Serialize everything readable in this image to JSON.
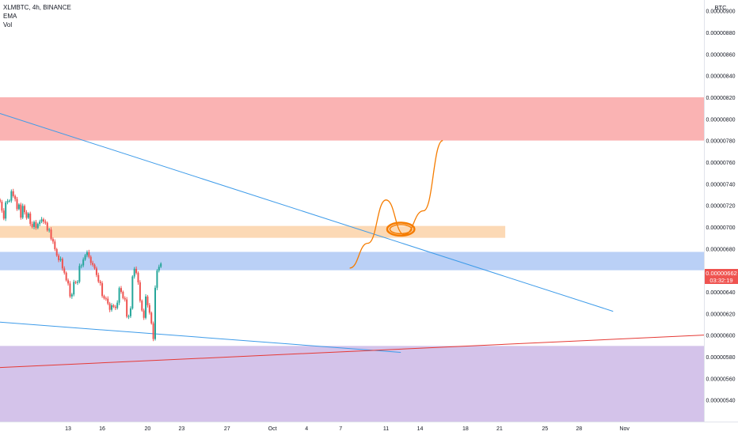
{
  "legend": {
    "symbol": "XLMBTC, 4h, BINANCE",
    "indicator_ema": "EMA",
    "indicator_vol": "Vol"
  },
  "colors": {
    "up": "#26a69a",
    "down": "#ef5350",
    "resistance_zone": "#f9a6a6",
    "mid_zone": "#fbd2a8",
    "support_zone": "#aec8f4",
    "demand_zone": "#cdb9e6",
    "trendline_blue": "#3d9be9",
    "trendline_red": "#e53935",
    "projection": "#f57c00"
  },
  "chart_data": {
    "type": "candlestick",
    "title": "XLMBTC, 4h, BINANCE",
    "currency": "BTC",
    "ylim": [
      5.2e-06,
      9.1e-06
    ],
    "x_range": [
      -2,
      60
    ],
    "y_ticks": [
      "0.00000900",
      "0.00000880",
      "0.00000860",
      "0.00000840",
      "0.00000820",
      "0.00000800",
      "0.00000780",
      "0.00000760",
      "0.00000740",
      "0.00000720",
      "0.00000700",
      "0.00000680",
      "0.00000640",
      "0.00000620",
      "0.00000600",
      "0.00000580",
      "0.00000560",
      "0.00000540"
    ],
    "x_ticks": [
      {
        "label": "13",
        "day": 4
      },
      {
        "label": "16",
        "day": 7
      },
      {
        "label": "20",
        "day": 11
      },
      {
        "label": "23",
        "day": 14
      },
      {
        "label": "27",
        "day": 18
      },
      {
        "label": "Oct",
        "day": 22
      },
      {
        "label": "4",
        "day": 25
      },
      {
        "label": "7",
        "day": 28
      },
      {
        "label": "11",
        "day": 32
      },
      {
        "label": "14",
        "day": 35
      },
      {
        "label": "18",
        "day": 39
      },
      {
        "label": "21",
        "day": 42
      },
      {
        "label": "25",
        "day": 46
      },
      {
        "label": "28",
        "day": 49
      },
      {
        "label": "Nov",
        "day": 53
      }
    ],
    "last_price": "0.00000662",
    "countdown": "03:32:19",
    "zones": [
      {
        "name": "resistance",
        "from": 7.8e-06,
        "to": 8.2e-06,
        "x_end": 60
      },
      {
        "name": "mid",
        "from": 6.9e-06,
        "to": 7.01e-06,
        "x_end": 42.5
      },
      {
        "name": "support",
        "from": 6.6e-06,
        "to": 6.77e-06,
        "x_end": 60
      },
      {
        "name": "demand",
        "from": 5.2e-06,
        "to": 5.9e-06,
        "x_end": 60
      }
    ],
    "trendlines": [
      {
        "name": "descending-resistance",
        "points": [
          [
            -2,
            8.05e-06
          ],
          [
            52,
            6.22e-06
          ]
        ]
      },
      {
        "name": "lower-channel",
        "points": [
          [
            -2,
            6.12e-06
          ],
          [
            33.3,
            5.84e-06
          ]
        ]
      },
      {
        "name": "rising-support",
        "points": [
          [
            -2,
            5.7e-06
          ],
          [
            60,
            6e-06
          ]
        ]
      }
    ],
    "projection": [
      [
        28.8,
        6.62e-06
      ],
      [
        30.4,
        6.85e-06
      ],
      [
        32,
        7.25e-06
      ],
      [
        33.6,
        6.93e-06
      ],
      [
        35.3,
        7.15e-06
      ],
      [
        37,
        7.8e-06
      ]
    ],
    "projection_ellipse": {
      "center": [
        33.3,
        6.98e-06
      ],
      "rx_days": 1.2,
      "ry": 6e-08
    },
    "candle_interval_days": 0.1667,
    "candle_start_day": -2,
    "closes": [
      7.234e-06,
      7.152e-06,
      7.078e-06,
      7.227e-06,
      7.239e-06,
      7.244e-06,
      7.331e-06,
      7.286e-06,
      7.259e-06,
      7.166e-06,
      7.208e-06,
      7.087e-06,
      7.195e-06,
      7.137e-06,
      7.085e-06,
      7.125e-06,
      7.029e-06,
      7.001e-06,
      7.046e-06,
      6.991e-06,
      7.028e-06,
      7.05e-06,
      7.071e-06,
      7.05e-06,
      7.039e-06,
      6.969e-06,
      6.976e-06,
      6.889e-06,
      6.866e-06,
      6.795e-06,
      6.736e-06,
      6.694e-06,
      6.705e-06,
      6.617e-06,
      6.577e-06,
      6.507e-06,
      6.478e-06,
      6.358e-06,
      6.376e-06,
      6.492e-06,
      6.484e-06,
      6.493e-06,
      6.64e-06,
      6.645e-06,
      6.699e-06,
      6.739e-06,
      6.767e-06,
      6.724e-06,
      6.668e-06,
      6.651e-06,
      6.617e-06,
      6.556e-06,
      6.496e-06,
      6.48e-06,
      6.362e-06,
      6.34e-06,
      6.337e-06,
      6.292e-06,
      6.234e-06,
      6.276e-06,
      6.262e-06,
      6.251e-06,
      6.3e-06,
      6.435e-06,
      6.4e-06,
      6.342e-06,
      6.33e-06,
      6.171e-06,
      6.175e-06,
      6.247e-06,
      6.542e-06,
      6.613e-06,
      6.575e-06,
      6.488e-06,
      6.318e-06,
      6.228e-06,
      6.16e-06,
      6.357e-06,
      6.277e-06,
      6.207e-06,
      6.109e-06,
      5.964e-06,
      6.438e-06,
      6.597e-06,
      6.632e-06,
      6.662e-06
    ]
  }
}
